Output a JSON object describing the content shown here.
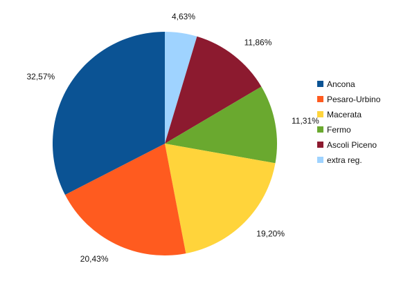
{
  "chart_data": {
    "type": "pie",
    "title": "",
    "legend_position": "right",
    "categories": [
      "Ancona",
      "Pesaro-Urbino",
      "Macerata",
      "Fermo",
      "Ascoli Piceno",
      "extra reg."
    ],
    "values": [
      32.57,
      20.43,
      19.2,
      11.31,
      11.86,
      4.63
    ],
    "value_labels": [
      "32,57%",
      "20,43%",
      "19,20%",
      "11,31%",
      "11,86%",
      "4,63%"
    ],
    "colors": [
      "#0b5394",
      "#ff5b1f",
      "#ffd43b",
      "#6aa92f",
      "#8c1a2f",
      "#9fd3ff"
    ],
    "draw_order": [
      "extra reg.",
      "Ascoli Piceno",
      "Fermo",
      "Macerata",
      "Pesaro-Urbino",
      "Ancona"
    ]
  }
}
